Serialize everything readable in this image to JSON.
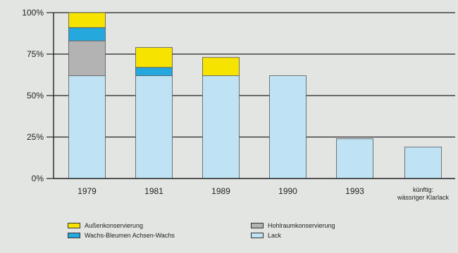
{
  "chart_data": {
    "type": "bar",
    "stacked": true,
    "categories": [
      "1979",
      "1981",
      "1989",
      "1990",
      "1993",
      "künftig: wässriger Klarlack"
    ],
    "category_lines": [
      [
        "1979"
      ],
      [
        "1981"
      ],
      [
        "1989"
      ],
      [
        "1990"
      ],
      [
        "1993"
      ],
      [
        "künftig:",
        "wässriger Klarlack"
      ]
    ],
    "series": [
      {
        "name": "Lack",
        "color": "#bfe3f5",
        "values": [
          62,
          62,
          62,
          62,
          24,
          19
        ]
      },
      {
        "name": "Hohlraumkonservierung",
        "color": "#b3b3b3",
        "values": [
          21,
          0,
          0,
          0,
          0,
          0
        ]
      },
      {
        "name": "Wachs-Bleumen Achsen-Wachs",
        "color": "#25a8dd",
        "values": [
          8,
          5,
          0,
          0,
          0,
          0
        ]
      },
      {
        "name": "Außenkonservierung",
        "color": "#f7e300",
        "values": [
          9,
          12,
          11,
          0,
          0,
          0
        ]
      }
    ],
    "y_ticks": [
      "0%",
      "25%",
      "50%",
      "75%",
      "100%"
    ],
    "ylim": [
      0,
      100
    ],
    "grid": true,
    "legend_position": "bottom",
    "legend_order": [
      "Außenkonservierung",
      "Hohlraumkonservierung",
      "Wachs-Bleumen Achsen-Wachs",
      "Lack"
    ]
  }
}
